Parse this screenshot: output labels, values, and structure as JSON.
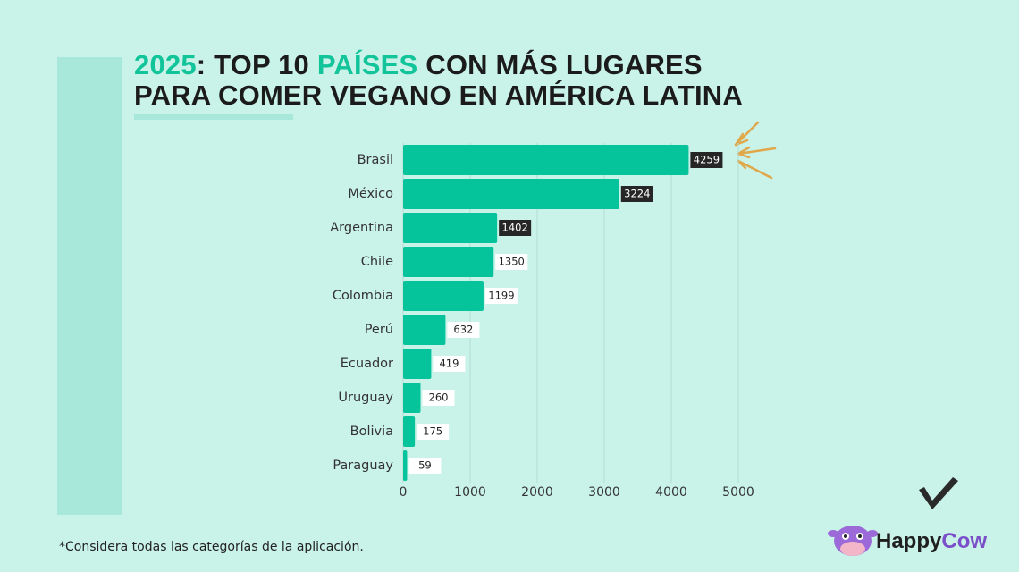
{
  "chart_data": {
    "type": "hbar",
    "title": [
      [
        {
          "text": "2025",
          "color": "#12c49a"
        },
        {
          "text": ": TOP 10 ",
          "color": "#1b1b1b"
        },
        {
          "text": "PAÍSES",
          "color": "#12c49a"
        },
        {
          "text": " CON MÁS LUGARES",
          "color": "#1b1b1b"
        }
      ],
      [
        {
          "text": "PARA COMER VEGANO EN AMÉRICA LATINA",
          "color": "#1b1b1b"
        }
      ]
    ],
    "categories": [
      "Brasil",
      "México",
      "Argentina",
      "Chile",
      "Colombia",
      "Perú",
      "Ecuador",
      "Uruguay",
      "Bolivia",
      "Paraguay"
    ],
    "values": [
      4259,
      3224,
      1402,
      1350,
      1199,
      632,
      419,
      260,
      175,
      59
    ],
    "color": "#05c39a",
    "label_backgrounds": [
      "#262626",
      "#262626",
      "#262626",
      "#ffffff",
      "#ffffff",
      "#ffffff",
      "#ffffff",
      "#ffffff",
      "#ffffff",
      "#ffffff"
    ],
    "xlim": [
      0,
      5000
    ],
    "xticks": [
      0,
      1000,
      2000,
      3000,
      4000,
      5000
    ],
    "grid": true,
    "footnote": "*Considera todas las categorías de la aplicación.",
    "brand": [
      {
        "text": "Happy",
        "color": "#1f1f1f"
      },
      {
        "text": "Cow",
        "color": "#7b4fc9"
      }
    ]
  }
}
